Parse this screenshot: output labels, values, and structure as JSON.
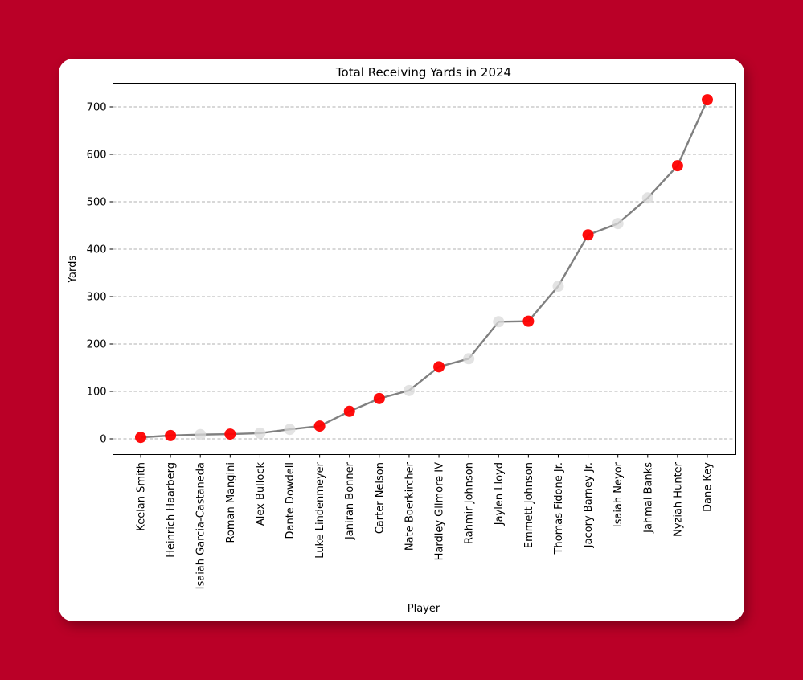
{
  "colors": {
    "background": "#BA0027",
    "card": "#FFFFFF",
    "line": "#808080",
    "highlight_marker": "#FF0000",
    "muted_marker": "#D9D9D9",
    "grid": "#B0B0B0"
  },
  "chart_data": {
    "type": "line",
    "title": "Total Receiving Yards in 2024",
    "xlabel": "Player",
    "ylabel": "Yards",
    "ylim": [
      -32,
      750
    ],
    "yticks": [
      0,
      100,
      200,
      300,
      400,
      500,
      600,
      700
    ],
    "grid": {
      "y": true,
      "x": false,
      "style": "dashed"
    },
    "legend": null,
    "categories": [
      "Keelan Smith",
      "Heinrich Haarberg",
      "Isaiah Garcia-Castaneda",
      "Roman Mangini",
      "Alex Bullock",
      "Dante Dowdell",
      "Luke Lindenmeyer",
      "Janiran Bonner",
      "Carter Nelson",
      "Nate Boerkircher",
      "Hardley Gilmore IV",
      "Rahmir Johnson",
      "Jaylen Lloyd",
      "Emmett Johnson",
      "Thomas Fidone Jr.",
      "Jacory Barney Jr.",
      "Isaiah Neyor",
      "Jahmal Banks",
      "Nyziah Hunter",
      "Dane Key"
    ],
    "series": [
      {
        "name": "Receiving Yards",
        "values": [
          3,
          7,
          9,
          10,
          12,
          20,
          27,
          58,
          85,
          102,
          152,
          169,
          247,
          248,
          322,
          430,
          454,
          508,
          576,
          715
        ],
        "highlighted": [
          true,
          true,
          false,
          true,
          false,
          false,
          true,
          true,
          true,
          false,
          true,
          false,
          false,
          true,
          false,
          true,
          false,
          false,
          true,
          true
        ]
      }
    ]
  }
}
